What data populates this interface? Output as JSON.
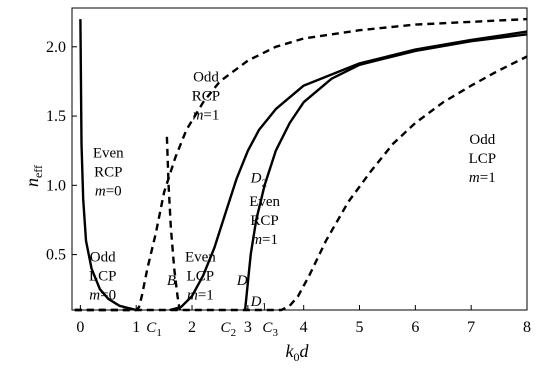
{
  "chart_data": {
    "type": "line",
    "title": "",
    "xlabel": {
      "main": "k",
      "sub1": "0",
      "main2": "d"
    },
    "ylabel": {
      "main": "n",
      "sub": "eff"
    },
    "xlim": [
      -0.15,
      8.0
    ],
    "ylim": [
      0.1,
      2.28
    ],
    "xticks": [
      0,
      1,
      2,
      3,
      4,
      5,
      6,
      7,
      8
    ],
    "yticks": [
      0.5,
      1.0,
      1.5,
      2.0
    ],
    "ytick_labels": [
      "0.5",
      "1.0",
      "1.5",
      "2.0"
    ],
    "grid": false,
    "legend": "none",
    "series": [
      {
        "style": "solid",
        "x": [
          0.0,
          0.02,
          0.05,
          0.1,
          0.2,
          0.35,
          0.5,
          0.7,
          0.9,
          1.0
        ],
        "y": [
          2.2,
          1.3,
          0.9,
          0.6,
          0.4,
          0.25,
          0.18,
          0.13,
          0.11,
          0.1
        ]
      },
      {
        "style": "dashed",
        "x": [
          -0.1,
          0.5,
          1.0,
          1.05,
          1.1,
          1.2,
          1.35,
          1.5,
          1.7,
          1.9,
          2.2,
          2.5,
          3.0,
          3.5,
          4.0,
          5.0,
          6.0,
          8.0
        ],
        "y": [
          0.1,
          0.1,
          0.1,
          0.12,
          0.2,
          0.4,
          0.65,
          0.95,
          1.2,
          1.4,
          1.6,
          1.75,
          1.9,
          2.0,
          2.06,
          2.12,
          2.16,
          2.2
        ]
      },
      {
        "style": "dashed",
        "x": [
          1.55,
          1.58,
          1.62,
          1.68,
          1.74,
          1.78
        ],
        "y": [
          1.35,
          1.0,
          0.7,
          0.4,
          0.2,
          0.1
        ]
      },
      {
        "style": "solid",
        "x": [
          1.6,
          1.8,
          2.0,
          2.2,
          2.4,
          2.6,
          2.8,
          3.0,
          3.2,
          3.5,
          4.0,
          5.0,
          6.0,
          7.0,
          8.0
        ],
        "y": [
          0.1,
          0.12,
          0.2,
          0.35,
          0.55,
          0.8,
          1.05,
          1.25,
          1.4,
          1.55,
          1.72,
          1.88,
          1.98,
          2.05,
          2.11
        ]
      },
      {
        "style": "solid",
        "x": [
          2.95,
          3.0,
          3.05,
          3.15,
          3.3,
          3.5,
          3.75,
          4.0,
          4.5,
          5.0,
          6.0,
          7.0,
          8.0
        ],
        "y": [
          0.1,
          0.3,
          0.5,
          0.75,
          1.0,
          1.25,
          1.45,
          1.6,
          1.77,
          1.87,
          1.97,
          2.04,
          2.09
        ]
      },
      {
        "style": "dashed",
        "x": [
          -0.1,
          1.0,
          2.0,
          3.0,
          3.6,
          3.75,
          3.9,
          4.1,
          4.4,
          4.8,
          5.2,
          5.6,
          6.0,
          6.5,
          7.0,
          7.5,
          8.0
        ],
        "y": [
          0.1,
          0.1,
          0.1,
          0.1,
          0.1,
          0.13,
          0.2,
          0.35,
          0.6,
          0.88,
          1.1,
          1.3,
          1.45,
          1.6,
          1.72,
          1.83,
          1.93
        ]
      }
    ],
    "annotations": [
      {
        "lines": [
          "Even",
          "RCP"
        ],
        "math": "m=0",
        "x": 0.5,
        "y": 1.2
      },
      {
        "lines": [
          "Odd",
          "LCP"
        ],
        "math": "m=0",
        "x": 0.4,
        "y": 0.45
      },
      {
        "lines": [
          "Odd",
          "RCP"
        ],
        "math": "m=1",
        "x": 2.25,
        "y": 1.75
      },
      {
        "lines": [
          "Even",
          "LCP"
        ],
        "math": "m=1",
        "x": 2.15,
        "y": 0.45
      },
      {
        "lines": [
          "Even",
          "RCP"
        ],
        "math": "m=1",
        "x": 3.3,
        "y": 0.85
      },
      {
        "lines": [
          "Odd",
          "LCP"
        ],
        "math": "m=1",
        "x": 7.2,
        "y": 1.3
      }
    ],
    "point_labels": [
      {
        "text": "B",
        "x": 1.55,
        "y": 0.28
      },
      {
        "text": "D",
        "x": 2.8,
        "y": 0.28
      },
      {
        "text": "D",
        "sub": "1",
        "x": 3.05,
        "y": 0.13
      },
      {
        "text": "D",
        "sub": "2",
        "x": 3.05,
        "y": 1.02
      }
    ],
    "axis_points": [
      {
        "text": "C",
        "sub": "1",
        "x": 1.32
      },
      {
        "text": "C",
        "sub": "2",
        "x": 2.65
      },
      {
        "text": "C",
        "sub": "3",
        "x": 3.4
      }
    ]
  }
}
